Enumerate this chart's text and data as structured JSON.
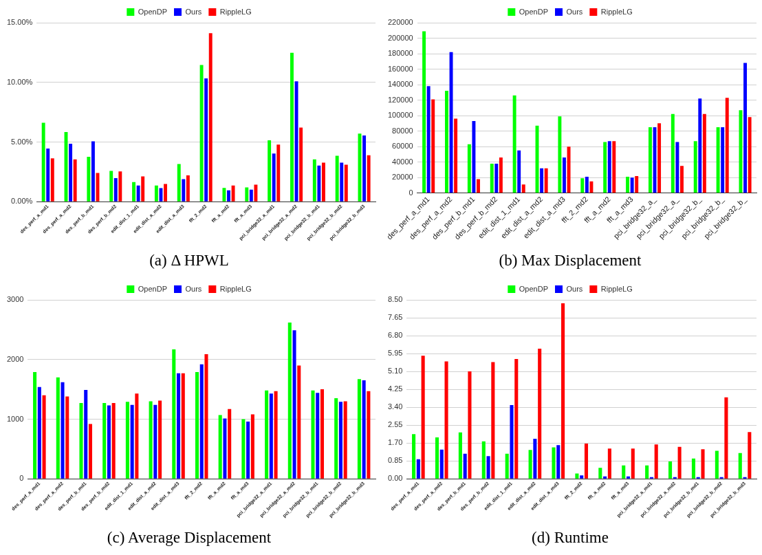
{
  "chart_data": [
    {
      "type": "bar",
      "title": "(a) Δ HPWL",
      "categories": [
        "des_perf_a_md1",
        "des_perf_a_md2",
        "des_perf_b_md1",
        "des_perf_b_md2",
        "edit_dist_1_md1",
        "edit_dist_a_md2",
        "edit_dist_a_md3",
        "fft_2_md2",
        "fft_a_md2",
        "fft_a_md3",
        "pci_bridge32_a_md1",
        "pci_bridge32_a_md2",
        "pci_bridge32_b_md1",
        "pci_bridge32_b_md2",
        "pci_bridge32_b_md3"
      ],
      "series": [
        {
          "name": "OpenDP",
          "color": "#00ff00",
          "values": [
            6.62,
            5.83,
            3.76,
            2.58,
            1.64,
            1.36,
            3.15,
            11.46,
            1.15,
            1.2,
            5.14,
            12.48,
            3.55,
            3.84,
            5.7
          ]
        },
        {
          "name": "Ours",
          "color": "#0000ff",
          "values": [
            4.45,
            4.86,
            5.06,
            1.97,
            1.36,
            1.13,
            1.89,
            10.33,
            0.95,
            1.0,
            4.04,
            10.08,
            3.02,
            3.27,
            5.55
          ]
        },
        {
          "name": "RippleLG",
          "color": "#ff0000",
          "values": [
            3.63,
            3.55,
            2.4,
            2.53,
            2.12,
            1.48,
            2.2,
            14.12,
            1.36,
            1.43,
            4.78,
            6.21,
            3.27,
            3.09,
            3.89
          ]
        }
      ],
      "ylim": [
        0,
        15
      ],
      "yticks": [
        {
          "value": 0,
          "label": "0.00%"
        },
        {
          "value": 5,
          "label": "5.00%"
        },
        {
          "value": 10,
          "label": "10.00%"
        },
        {
          "value": 15,
          "label": "15.00%"
        }
      ],
      "grid": "y",
      "legend": "top"
    },
    {
      "type": "bar",
      "title": "(b) Max Displacement",
      "categories": [
        "des_perf_a_md1",
        "des_perf_a_md2",
        "des_perf_b_md1",
        "des_perf_b_md2",
        "edit_dist_1_md1",
        "edit_dist_a_md2",
        "edit_dist_a_md3",
        "fft_2_md2",
        "fft_a_md2",
        "fft_a_md3",
        "pci_bridge32_a_",
        "pci_bridge32_a_",
        "pci_bridge32_b_",
        "pci_bridge32_b_",
        "pci_bridge32_b_"
      ],
      "series": [
        {
          "name": "OpenDP",
          "color": "#00ff00",
          "values": [
            209000,
            132000,
            63000,
            38000,
            126000,
            87000,
            99000,
            19000,
            66000,
            21000,
            85000,
            102000,
            67000,
            85000,
            107000
          ]
        },
        {
          "name": "Ours",
          "color": "#0000ff",
          "values": [
            138000,
            182000,
            93000,
            38000,
            55000,
            32000,
            46000,
            21000,
            67000,
            20000,
            85000,
            66000,
            122000,
            85000,
            168000
          ]
        },
        {
          "name": "RippleLG",
          "color": "#ff0000",
          "values": [
            121000,
            96000,
            18000,
            46000,
            11000,
            32000,
            60000,
            15000,
            67000,
            22000,
            90000,
            35000,
            102000,
            123000,
            98000
          ]
        }
      ],
      "ylim": [
        0,
        220000
      ],
      "yticks": [
        0,
        20000,
        40000,
        60000,
        80000,
        100000,
        120000,
        140000,
        160000,
        180000,
        200000,
        220000
      ],
      "grid": "y",
      "legend": "top"
    },
    {
      "type": "bar",
      "title": "(c) Average Displacement",
      "categories": [
        "des_perf_a_md1",
        "des_perf_a_md2",
        "des_perf_b_md1",
        "des_perf_b_md2",
        "edit_dist_1_md1",
        "edit_dist_a_md2",
        "edit_dist_a_md3",
        "fft_2_md2",
        "fft_a_md2",
        "fft_a_md3",
        "pci_bridge32_a_md1",
        "pci_bridge32_a_md2",
        "pci_bridge32_b_md1",
        "pci_bridge32_b_md2",
        "pci_bridge32_b_md3"
      ],
      "series": [
        {
          "name": "OpenDP",
          "color": "#00ff00",
          "values": [
            1790,
            1700,
            1270,
            1270,
            1290,
            1300,
            2170,
            1790,
            1070,
            1000,
            1480,
            2620,
            1480,
            1350,
            1670
          ]
        },
        {
          "name": "Ours",
          "color": "#0000ff",
          "values": [
            1540,
            1620,
            1490,
            1230,
            1240,
            1240,
            1770,
            1920,
            1010,
            960,
            1430,
            2490,
            1440,
            1290,
            1650
          ]
        },
        {
          "name": "RippleLG",
          "color": "#ff0000",
          "values": [
            1400,
            1380,
            920,
            1270,
            1430,
            1310,
            1770,
            2090,
            1170,
            1080,
            1470,
            1900,
            1500,
            1300,
            1470
          ]
        }
      ],
      "ylim": [
        0,
        3000
      ],
      "yticks": [
        0,
        1000,
        2000,
        3000
      ],
      "grid": "y",
      "legend": "top"
    },
    {
      "type": "bar",
      "title": "(d) Runtime",
      "categories": [
        "des_perf_a_md1",
        "des_perf_a_md2",
        "des_perf_b_md1",
        "des_perf_b_md2",
        "edit_dist_1_md1",
        "edit_dist_a_md2",
        "edit_dist_a_md3",
        "fft_2_md2",
        "fft_a_md2",
        "fft_a_md3",
        "pci_bridge32_a_md1",
        "pci_bridge32_a_md2",
        "pci_bridge32_b_md1",
        "pci_bridge32_b_md2",
        "pci_bridge32_b_md3"
      ],
      "series": [
        {
          "name": "OpenDP",
          "color": "#00ff00",
          "values": [
            2.12,
            1.97,
            2.2,
            1.78,
            1.19,
            1.37,
            1.49,
            0.25,
            0.52,
            0.64,
            0.64,
            0.82,
            0.96,
            1.33,
            1.22
          ]
        },
        {
          "name": "Ours",
          "color": "#0000ff",
          "values": [
            0.93,
            1.39,
            1.19,
            1.08,
            3.5,
            1.9,
            1.6,
            0.16,
            0.11,
            0.11,
            0.08,
            0.08,
            0.08,
            0.08,
            0.08
          ]
        },
        {
          "name": "RippleLG",
          "color": "#ff0000",
          "values": [
            5.85,
            5.58,
            5.1,
            5.54,
            5.69,
            6.18,
            8.34,
            1.67,
            1.44,
            1.44,
            1.63,
            1.52,
            1.4,
            3.87,
            2.22
          ]
        }
      ],
      "ylim": [
        0,
        8.5
      ],
      "yticks": [
        {
          "value": 0,
          "label": "0.00"
        },
        {
          "value": 0.85,
          "label": "0.85"
        },
        {
          "value": 1.7,
          "label": "1.70"
        },
        {
          "value": 2.55,
          "label": "2.55"
        },
        {
          "value": 3.4,
          "label": "3.40"
        },
        {
          "value": 4.25,
          "label": "4.25"
        },
        {
          "value": 5.1,
          "label": "5.10"
        },
        {
          "value": 5.95,
          "label": "5.95"
        },
        {
          "value": 6.8,
          "label": "6.80"
        },
        {
          "value": 7.65,
          "label": "7.65"
        },
        {
          "value": 8.5,
          "label": "8.50"
        }
      ],
      "grid": "y",
      "legend": "top"
    }
  ]
}
